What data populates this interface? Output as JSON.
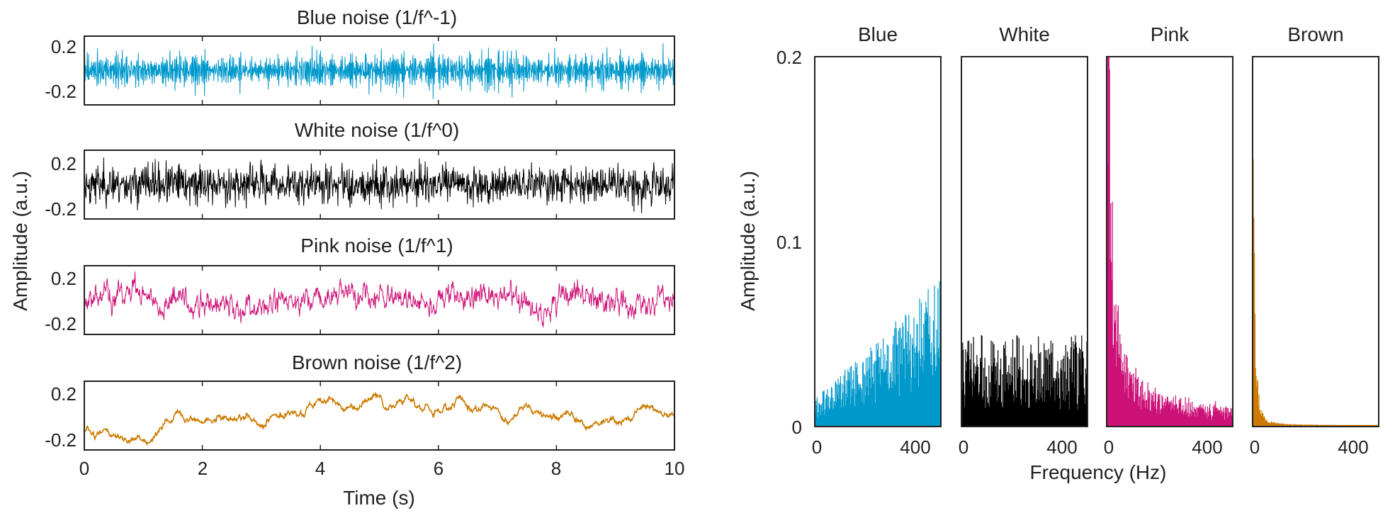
{
  "colors": {
    "blue": "#0099cc",
    "white": "#000000",
    "pink": "#cc1177",
    "brown": "#cc7a00",
    "axis": "#222222"
  },
  "chart_data": [
    {
      "type": "line",
      "id": "time-series",
      "xlabel": "Time (s)",
      "ylabel": "Amplitude (a.u.)",
      "xlim": [
        0,
        10
      ],
      "xticks": [
        "0",
        "2",
        "4",
        "6",
        "8",
        "10"
      ],
      "yticks": [
        "0.2",
        "-0.2"
      ],
      "series": [
        {
          "name": "Blue noise (1/f^-1)",
          "key": "blue",
          "color": "#0099cc",
          "kind": "blue",
          "seed": 11,
          "amp": 0.22
        },
        {
          "name": "White noise (1/f^0)",
          "key": "white",
          "color": "#000000",
          "kind": "white",
          "seed": 23,
          "amp": 0.2
        },
        {
          "name": "Pink noise (1/f^1)",
          "key": "pink",
          "color": "#cc1177",
          "kind": "pink",
          "seed": 37,
          "amp": 0.27
        },
        {
          "name": "Brown noise (1/f^2)",
          "key": "brown",
          "color": "#cc7a00",
          "kind": "brown",
          "seed": 51,
          "amp": 0.25
        }
      ]
    },
    {
      "type": "area",
      "id": "spectra",
      "xlabel": "Frequency (Hz)",
      "ylabel": "Amplitude (a.u.)",
      "xlim": [
        0,
        500
      ],
      "ylim": [
        0,
        0.2
      ],
      "xticks": [
        "0",
        "400"
      ],
      "yticks": [
        "0",
        "0.1",
        "0.2"
      ],
      "panels": [
        {
          "title": "Blue",
          "key": "blue",
          "color": "#0099cc",
          "kind": "blue",
          "seed": 61
        },
        {
          "title": "White",
          "key": "white",
          "color": "#000000",
          "kind": "white",
          "seed": 73
        },
        {
          "title": "Pink",
          "key": "pink",
          "color": "#cc1177",
          "kind": "pink",
          "seed": 89
        },
        {
          "title": "Brown",
          "key": "brown",
          "color": "#cc7a00",
          "kind": "brown",
          "seed": 97
        }
      ]
    }
  ]
}
